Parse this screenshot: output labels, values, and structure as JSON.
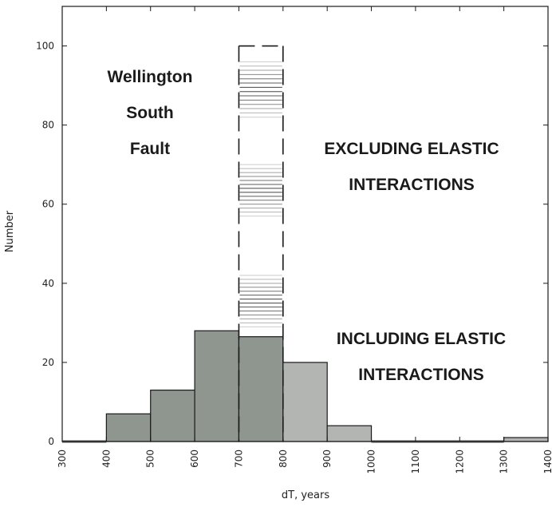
{
  "chart_data": {
    "type": "bar",
    "title": "",
    "xlabel": "dT, years",
    "ylabel": "Number",
    "xlim": [
      300,
      1400
    ],
    "ylim": [
      0,
      110
    ],
    "x_ticks": [
      "300",
      "400",
      "500",
      "600",
      "700",
      "800",
      "900",
      "1000",
      "1100",
      "1200",
      "1300",
      "1400"
    ],
    "y_ticks": [
      "0",
      "20",
      "40",
      "60",
      "80",
      "100"
    ],
    "bin_width": 100,
    "series": [
      {
        "name": "INCLUDING ELASTIC INTERACTIONS",
        "bins": [
          {
            "x0": 300,
            "x1": 400,
            "value": 0
          },
          {
            "x0": 400,
            "x1": 500,
            "value": 7
          },
          {
            "x0": 500,
            "x1": 600,
            "value": 13
          },
          {
            "x0": 600,
            "x1": 700,
            "value": 28
          },
          {
            "x0": 700,
            "x1": 800,
            "value": 26.5
          },
          {
            "x0": 800,
            "x1": 900,
            "value": 20
          },
          {
            "x0": 900,
            "x1": 1000,
            "value": 4
          },
          {
            "x0": 1000,
            "x1": 1100,
            "value": 0
          },
          {
            "x0": 1100,
            "x1": 1200,
            "value": 0
          },
          {
            "x0": 1200,
            "x1": 1300,
            "value": 0
          },
          {
            "x0": 1300,
            "x1": 1400,
            "value": 1
          }
        ]
      },
      {
        "name": "EXCLUDING ELASTIC INTERACTIONS",
        "bins": [
          {
            "x0": 700,
            "x1": 800,
            "value": 100
          }
        ]
      }
    ],
    "annotations": {
      "fault_lines": [
        "Wellington",
        "South",
        "Fault"
      ],
      "excluding_lines": [
        "EXCLUDING ELASTIC",
        "INTERACTIONS"
      ],
      "including_lines": [
        "INCLUDING ELASTIC",
        "INTERACTIONS"
      ]
    },
    "colors": {
      "bar_dark": "#8f958f",
      "bar_light": "#b3b5b3",
      "outline": "#1a1a1a",
      "hatch": "#3a3a3a"
    }
  }
}
